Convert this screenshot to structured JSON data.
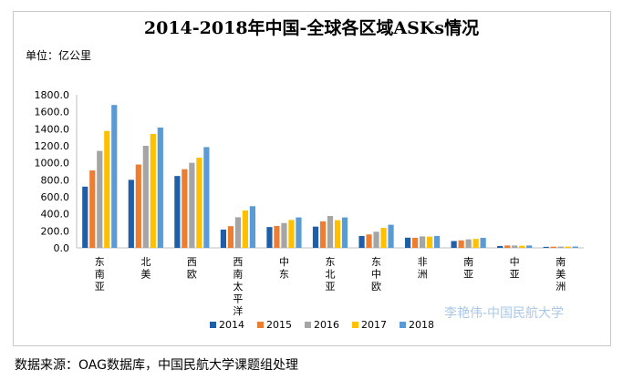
{
  "source_note": "数据来源：OAG数据库，中国民航大学课题组处理",
  "watermark": "李艳伟-中国民航大学",
  "chart_data": {
    "type": "bar",
    "title": "2014-2018年中国-全球各区域ASKs情况",
    "ylabel": "单位：亿公里",
    "xlabel": "",
    "ylim": [
      0,
      1800
    ],
    "yticks": [
      "0.0",
      "200.0",
      "400.0",
      "600.0",
      "800.0",
      "1000.0",
      "1200.0",
      "1400.0",
      "1600.0",
      "1800.0"
    ],
    "categories": [
      "东南亚",
      "北美",
      "西欧",
      "西南太平洋",
      "中东",
      "东北亚",
      "东中欧",
      "非洲",
      "南亚",
      "中亚",
      "南美洲"
    ],
    "category_lines": [
      [
        "东",
        "南",
        "亚"
      ],
      [
        "北",
        "美"
      ],
      [
        "西",
        "欧"
      ],
      [
        "西",
        "南",
        "太",
        "平",
        "洋"
      ],
      [
        "中",
        "东"
      ],
      [
        "东",
        "北",
        "亚"
      ],
      [
        "东",
        "中",
        "欧"
      ],
      [
        "非",
        "洲"
      ],
      [
        "南",
        "亚"
      ],
      [
        "中",
        "亚"
      ],
      [
        "南",
        "美",
        "洲"
      ]
    ],
    "series": [
      {
        "name": "2014",
        "color": "#1f5fa8",
        "values": [
          720,
          800,
          845,
          215,
          245,
          250,
          140,
          120,
          80,
          22,
          12
        ]
      },
      {
        "name": "2015",
        "color": "#ed7d31",
        "values": [
          910,
          980,
          925,
          255,
          258,
          312,
          158,
          118,
          88,
          28,
          14
        ]
      },
      {
        "name": "2016",
        "color": "#a5a5a5",
        "values": [
          1140,
          1200,
          1000,
          360,
          292,
          375,
          190,
          135,
          100,
          28,
          15
        ]
      },
      {
        "name": "2017",
        "color": "#ffc000",
        "values": [
          1375,
          1340,
          1060,
          440,
          328,
          325,
          235,
          132,
          105,
          25,
          15
        ]
      },
      {
        "name": "2018",
        "color": "#5b9bd5",
        "values": [
          1680,
          1415,
          1185,
          490,
          358,
          358,
          272,
          140,
          118,
          28,
          16
        ]
      }
    ],
    "legend_position": "bottom"
  }
}
